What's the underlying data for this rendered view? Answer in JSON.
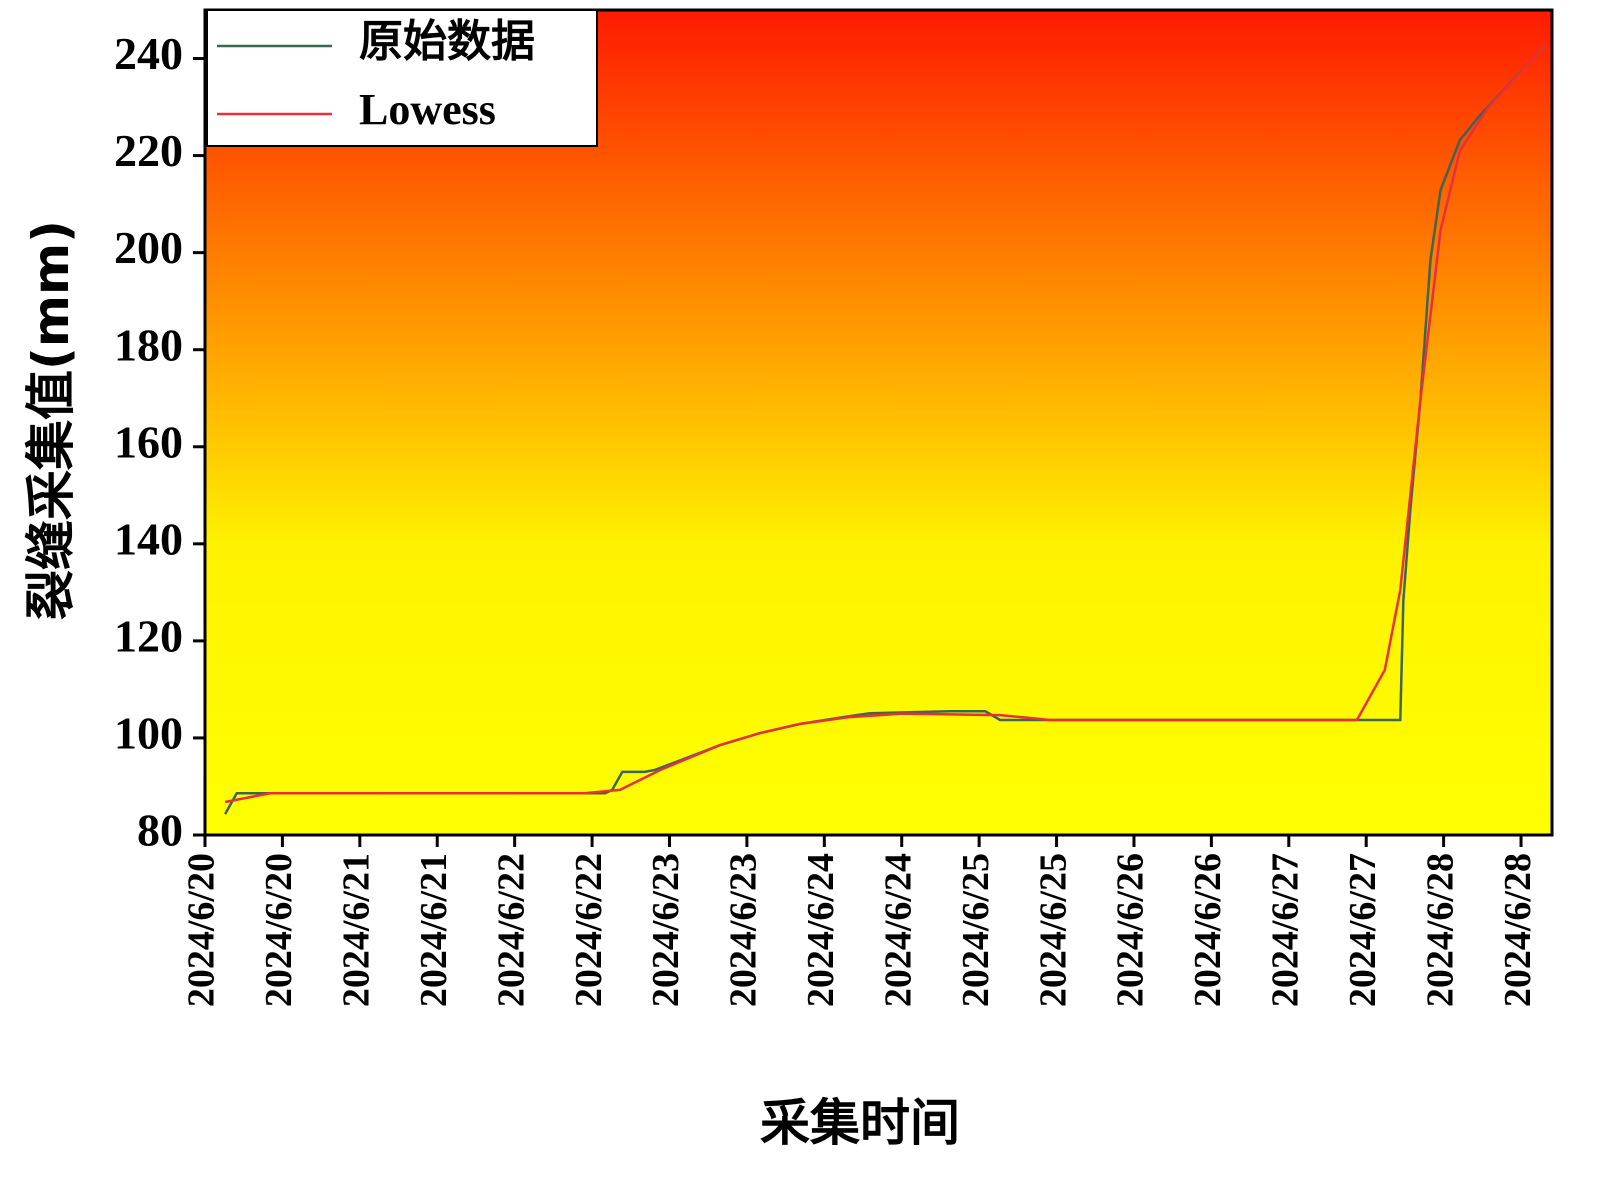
{
  "chart_data": {
    "type": "line",
    "x_label": "采集时间",
    "y_label": "裂缝采集值(mm)",
    "xlim": [
      0,
      17.4
    ],
    "ylim": [
      80,
      250
    ],
    "xticks": [
      {
        "value": 0,
        "label": "2024/6/20"
      },
      {
        "value": 1,
        "label": "2024/6/20"
      },
      {
        "value": 2,
        "label": "2024/6/21"
      },
      {
        "value": 3,
        "label": "2024/6/21"
      },
      {
        "value": 4,
        "label": "2024/6/22"
      },
      {
        "value": 5,
        "label": "2024/6/22"
      },
      {
        "value": 6,
        "label": "2024/6/23"
      },
      {
        "value": 7,
        "label": "2024/6/23"
      },
      {
        "value": 8,
        "label": "2024/6/24"
      },
      {
        "value": 9,
        "label": "2024/6/24"
      },
      {
        "value": 10,
        "label": "2024/6/25"
      },
      {
        "value": 11,
        "label": "2024/6/25"
      },
      {
        "value": 12,
        "label": "2024/6/26"
      },
      {
        "value": 13,
        "label": "2024/6/26"
      },
      {
        "value": 14,
        "label": "2024/6/27"
      },
      {
        "value": 15,
        "label": "2024/6/27"
      },
      {
        "value": 16,
        "label": "2024/6/28"
      },
      {
        "value": 17,
        "label": "2024/6/28"
      }
    ],
    "yticks": [
      80,
      100,
      120,
      140,
      160,
      180,
      200,
      220,
      240
    ],
    "legend": "upper left",
    "series": [
      {
        "name": "原始数据",
        "color": "#3d6650",
        "x": [
          0.26,
          0.41,
          0.84,
          5.17,
          5.26,
          5.39,
          5.68,
          5.81,
          6.14,
          6.65,
          7.17,
          7.69,
          8.33,
          8.59,
          9.63,
          10.08,
          10.27,
          10.92,
          15.44,
          15.48,
          15.57,
          15.7,
          15.83,
          15.96,
          16.21,
          16.47,
          17.31
        ],
        "values": [
          84.3,
          88.6,
          88.6,
          88.6,
          89.3,
          93.0,
          93.0,
          93.4,
          95.4,
          98.5,
          101.0,
          102.9,
          104.5,
          105.1,
          105.5,
          105.5,
          103.7,
          103.7,
          103.7,
          128.4,
          147.0,
          169.6,
          198.5,
          212.9,
          223.2,
          228.3,
          242.7
        ]
      },
      {
        "name": "Lowess",
        "color": "#e8303a",
        "x": [
          0.26,
          0.84,
          4.9,
          5.36,
          5.88,
          6.65,
          7.17,
          7.69,
          8.33,
          9.0,
          10.27,
          10.92,
          14.88,
          15.24,
          15.44,
          15.7,
          15.96,
          16.21,
          16.58,
          17.31
        ],
        "values": [
          86.8,
          88.6,
          88.6,
          89.3,
          93.4,
          98.5,
          101.0,
          102.9,
          104.3,
          105.0,
          104.7,
          103.7,
          103.7,
          114.0,
          130.5,
          169.6,
          204.6,
          221.0,
          230.0,
          242.7
        ]
      }
    ]
  }
}
